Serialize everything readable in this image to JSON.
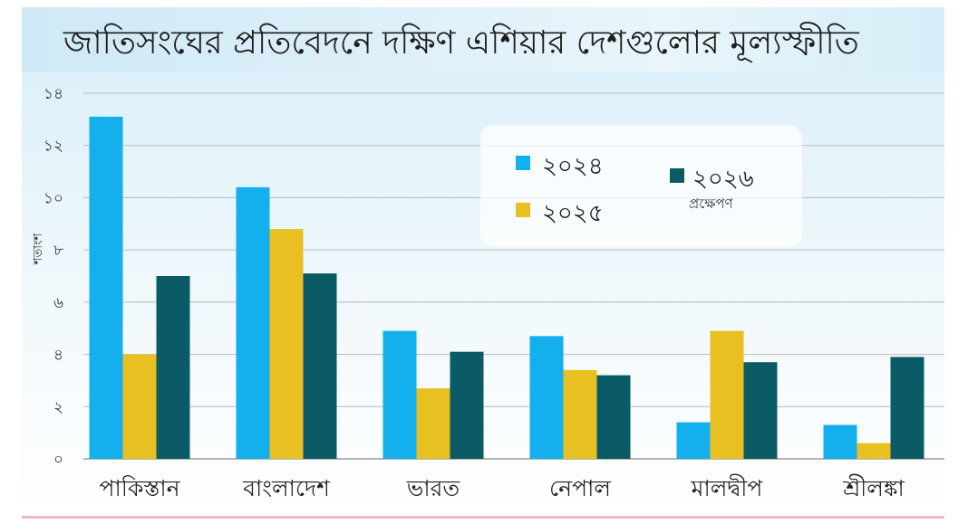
{
  "chart_data": {
    "type": "bar",
    "title": "জাতিসংঘের প্রতিবেদনে দক্ষিণ এশিয়ার দেশগুলোর মূল্যস্ফীতি",
    "ylabel": "শতাংশ",
    "xlabel": "",
    "ylim": [
      0,
      14
    ],
    "yticks": [
      0,
      2,
      4,
      6,
      8,
      10,
      12,
      14
    ],
    "ytick_labels": [
      "০",
      "২",
      "৪",
      "৬",
      "৮",
      "১০",
      "১২",
      "১৪"
    ],
    "grid": true,
    "legend_position": "top-right",
    "categories": [
      "পাকিস্তান",
      "বাংলাদেশ",
      "ভারত",
      "নেপাল",
      "মালদ্বীপ",
      "শ্রীলঙ্কা"
    ],
    "series": [
      {
        "name": "২০২৪",
        "sublabel": "",
        "color": "#14b0ee",
        "values": [
          13.1,
          10.4,
          4.9,
          4.7,
          1.4,
          1.3
        ]
      },
      {
        "name": "২০২৫",
        "sublabel": "",
        "color": "#e8c022",
        "values": [
          4.0,
          8.8,
          2.7,
          3.4,
          4.9,
          0.6
        ]
      },
      {
        "name": "২০২৬",
        "sublabel": "প্রক্ষেপণ",
        "color": "#0b5b67",
        "values": [
          7.0,
          7.1,
          4.1,
          3.2,
          3.7,
          3.9
        ]
      }
    ]
  }
}
